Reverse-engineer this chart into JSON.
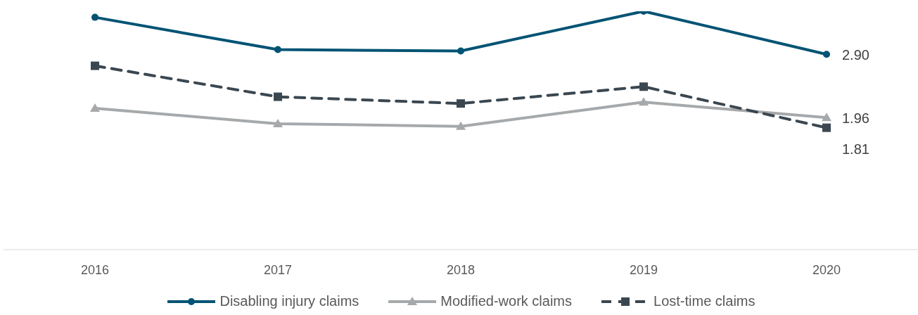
{
  "chart_data": {
    "type": "line",
    "categories": [
      "2016",
      "2017",
      "2018",
      "2019",
      "2020"
    ],
    "series": [
      {
        "name": "Disabling injury claims",
        "color": "#005374",
        "marker": "circle",
        "line_style": "solid",
        "values": [
          3.45,
          2.97,
          2.95,
          3.54,
          2.9
        ],
        "value_labels": [
          null,
          null,
          null,
          null,
          "2.90"
        ]
      },
      {
        "name": "Modified-work claims",
        "color": "#a6a9ab",
        "marker": "triangle",
        "line_style": "solid",
        "values": [
          2.1,
          1.87,
          1.83,
          2.19,
          1.96
        ],
        "value_labels": [
          null,
          null,
          null,
          null,
          "1.96"
        ]
      },
      {
        "name": "Lost-time claims",
        "color": "#3b4750",
        "marker": "square",
        "line_style": "dashed",
        "values": [
          2.73,
          2.27,
          2.17,
          2.42,
          1.81
        ],
        "value_labels": [
          null,
          null,
          null,
          null,
          "1.81"
        ]
      }
    ],
    "tick_labels": "x",
    "legend": "bottom"
  }
}
